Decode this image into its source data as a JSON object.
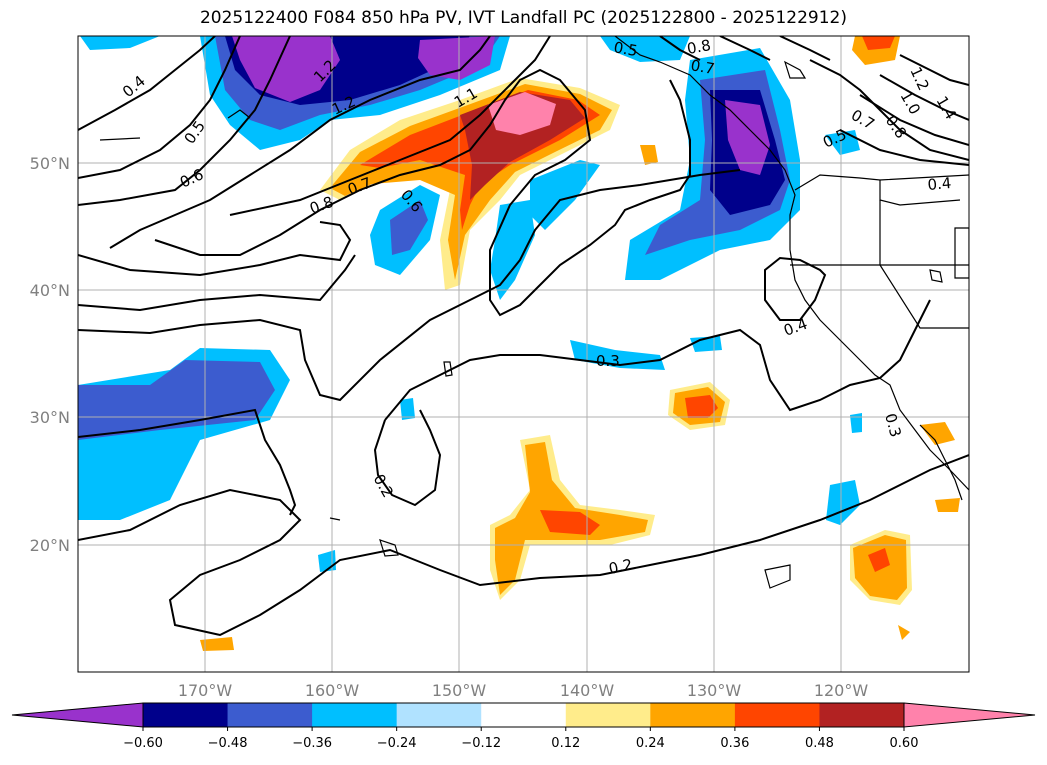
{
  "title": "2025122400 F084 850 hPa PV, IVT Landfall PC (2025122800 - 2025122912)",
  "lat_labels": [
    "50°N",
    "40°N",
    "30°N",
    "20°N"
  ],
  "lon_labels": [
    "170°W",
    "160°W",
    "150°W",
    "140°W",
    "130°W",
    "120°W"
  ],
  "colorbar": {
    "colors": [
      "#9932cc",
      "#00008b",
      "#3c5ccf",
      "#00bfff",
      "#b0e2ff",
      "#ffffff",
      "#ffec8b",
      "#ffa500",
      "#ff4500",
      "#b22222",
      "#ff82ab"
    ],
    "ticks": [
      "−0.60",
      "−0.48",
      "−0.36",
      "−0.24",
      "−0.12",
      "0.12",
      "0.24",
      "0.36",
      "0.48",
      "0.60"
    ]
  },
  "contour_labels": [
    "0.4",
    "0.5",
    "0.6",
    "0.8",
    "0.7",
    "0.6",
    "1.2",
    "1.2",
    "1.1",
    "0.8",
    "0.7",
    "0.5",
    "0.7",
    "0.8",
    "1.0",
    "1.2",
    "1.4",
    "0.4",
    "0.5",
    "0.4",
    "0.3",
    "0.2",
    "0.2",
    "0.3"
  ]
}
